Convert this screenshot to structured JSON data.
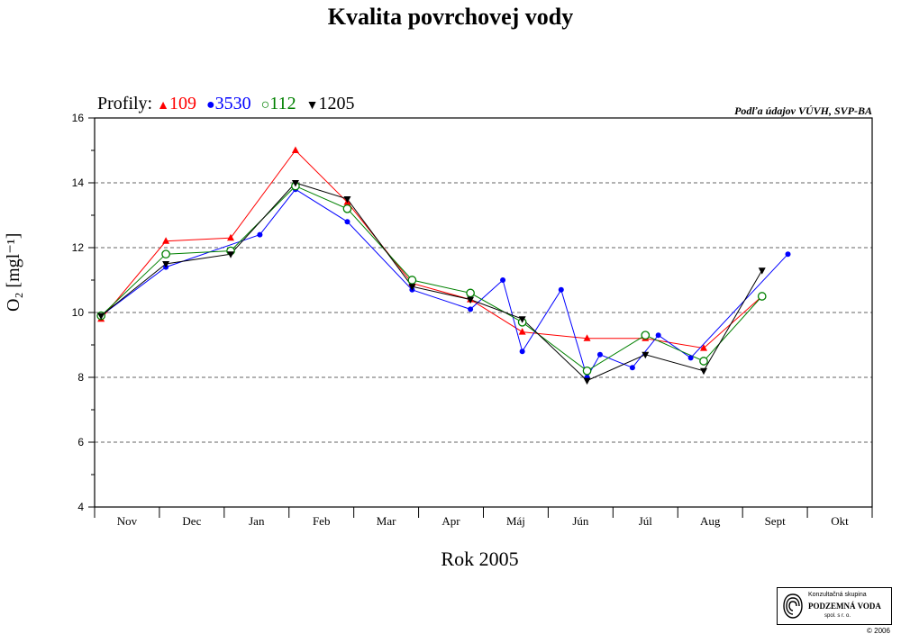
{
  "title": "Kvalita povrchovej vody",
  "legend": {
    "prefix": "Profily:",
    "items": [
      {
        "symbol": "▲",
        "label": "109",
        "color": "#ff0000"
      },
      {
        "symbol": "●",
        "label": "3530",
        "color": "#0000ff"
      },
      {
        "symbol": "○",
        "label": "112",
        "color": "#008000"
      },
      {
        "symbol": "▼",
        "label": "1205",
        "color": "#000000"
      }
    ]
  },
  "source_note": "Podľa údajov VÚVH, SVP-BA",
  "y_axis_label": "O₂ [mgl⁻¹]",
  "x_axis_label": "Rok 2005",
  "logo": {
    "line1": "Konzultačná skupina",
    "line2": "PODZEMNÁ VODA",
    "line3": "spol. s r. o."
  },
  "copyright": "© 2006",
  "chart_data": {
    "type": "line",
    "categories": [
      "Nov",
      "Dec",
      "Jan",
      "Feb",
      "Mar",
      "Apr",
      "Máj",
      "Jún",
      "Júl",
      "Aug",
      "Sept",
      "Okt"
    ],
    "ylim": [
      4,
      16
    ],
    "yticks": [
      4,
      6,
      8,
      10,
      12,
      14,
      16
    ],
    "grid": "horizontal dashed",
    "series": [
      {
        "name": "109",
        "color": "#ff0000",
        "marker": "triangle-up",
        "points": [
          [
            0.1,
            9.8
          ],
          [
            1.1,
            12.2
          ],
          [
            2.1,
            12.3
          ],
          [
            3.1,
            15.0
          ],
          [
            3.9,
            13.4
          ],
          [
            4.9,
            10.9
          ],
          [
            5.8,
            10.4
          ],
          [
            6.6,
            9.4
          ],
          [
            7.6,
            9.2
          ],
          [
            8.5,
            9.2
          ],
          [
            9.4,
            8.9
          ],
          [
            10.3,
            10.5
          ]
        ]
      },
      {
        "name": "3530",
        "color": "#0000ff",
        "marker": "circle",
        "points": [
          [
            0.1,
            9.9
          ],
          [
            1.1,
            11.4
          ],
          [
            2.55,
            12.4
          ],
          [
            3.1,
            13.8
          ],
          [
            3.9,
            12.8
          ],
          [
            4.9,
            10.7
          ],
          [
            5.8,
            10.1
          ],
          [
            6.3,
            11.0
          ],
          [
            6.6,
            8.8
          ],
          [
            7.2,
            10.7
          ],
          [
            7.6,
            8.0
          ],
          [
            7.8,
            8.7
          ],
          [
            8.3,
            8.3
          ],
          [
            8.7,
            9.3
          ],
          [
            9.2,
            8.6
          ],
          [
            10.7,
            11.8
          ]
        ]
      },
      {
        "name": "112",
        "color": "#008000",
        "marker": "circle-open",
        "points": [
          [
            0.1,
            9.9
          ],
          [
            1.1,
            11.8
          ],
          [
            2.1,
            11.9
          ],
          [
            3.1,
            13.9
          ],
          [
            3.9,
            13.2
          ],
          [
            4.9,
            11.0
          ],
          [
            5.8,
            10.6
          ],
          [
            6.6,
            9.7
          ],
          [
            7.6,
            8.2
          ],
          [
            8.5,
            9.3
          ],
          [
            9.4,
            8.5
          ],
          [
            10.3,
            10.5
          ]
        ]
      },
      {
        "name": "1205",
        "color": "#000000",
        "marker": "triangle-down",
        "points": [
          [
            0.1,
            9.9
          ],
          [
            1.1,
            11.5
          ],
          [
            2.1,
            11.8
          ],
          [
            3.1,
            14.0
          ],
          [
            3.9,
            13.5
          ],
          [
            4.9,
            10.8
          ],
          [
            5.8,
            10.4
          ],
          [
            6.6,
            9.8
          ],
          [
            7.6,
            7.9
          ],
          [
            8.5,
            8.7
          ],
          [
            9.4,
            8.2
          ],
          [
            10.3,
            11.3
          ]
        ]
      }
    ]
  }
}
